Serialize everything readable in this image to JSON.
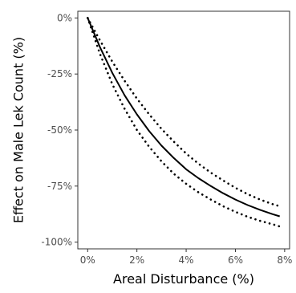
{
  "chart_data": {
    "type": "line",
    "xlabel": "Areal Disturbance (%)",
    "ylabel": "Effect on Male Lek Count (%)",
    "xlim": [
      -0.4,
      8.2
    ],
    "ylim": [
      -103,
      3
    ],
    "x_ticks": [
      0,
      2,
      4,
      6,
      8
    ],
    "x_tick_labels": [
      "0%",
      "2%",
      "4%",
      "6%",
      "8%"
    ],
    "y_ticks": [
      0,
      -25,
      -50,
      -75,
      -100
    ],
    "y_tick_labels": [
      "0%",
      "-25%",
      "-50%",
      "-75%",
      "-100%"
    ],
    "grid": false,
    "legend": "none",
    "series": [
      {
        "style": "solid",
        "color": "#000000",
        "x": [
          0,
          0.5,
          1,
          1.5,
          2,
          2.5,
          3,
          3.5,
          4,
          4.5,
          5,
          5.5,
          6,
          6.5,
          7,
          7.5,
          7.8
        ],
        "y": [
          0,
          -13,
          -24.5,
          -34.5,
          -43,
          -50.5,
          -57,
          -62.5,
          -67.5,
          -71.5,
          -75,
          -78.2,
          -81,
          -83.5,
          -85.6,
          -87.5,
          -88.5
        ]
      },
      {
        "style": "dotted",
        "color": "#000000",
        "x": [
          0,
          0.5,
          1,
          1.5,
          2,
          2.5,
          3,
          3.5,
          4,
          4.5,
          5,
          5.5,
          6,
          6.5,
          7,
          7.5,
          7.8
        ],
        "y": [
          0,
          -16,
          -29.5,
          -40.5,
          -50,
          -57.5,
          -64,
          -69.5,
          -74,
          -77.8,
          -81,
          -84,
          -86.5,
          -88.7,
          -90.5,
          -92,
          -93
        ]
      },
      {
        "style": "dotted",
        "color": "#000000",
        "x": [
          0,
          0.5,
          1,
          1.5,
          2,
          2.5,
          3,
          3.5,
          4,
          4.5,
          5,
          5.5,
          6,
          6.5,
          7,
          7.5,
          7.8
        ],
        "y": [
          0,
          -10,
          -19.5,
          -28,
          -36,
          -43,
          -49.5,
          -55.2,
          -60.5,
          -65,
          -69,
          -72.5,
          -75.8,
          -78.6,
          -81,
          -83,
          -84
        ]
      }
    ]
  }
}
